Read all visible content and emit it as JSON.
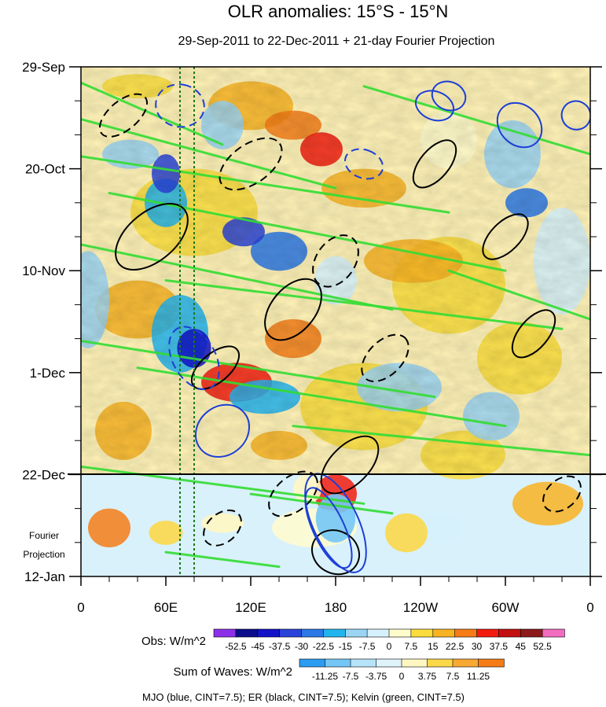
{
  "chart_data": {
    "type": "heatmap",
    "title": "OLR anomalies: 15°S - 15°N",
    "subtitle": "29-Sep-2011 to 22-Dec-2011 + 21-day Fourier Projection",
    "y_ticks": [
      "29-Sep",
      "20-Oct",
      "10-Nov",
      "1-Dec",
      "22-Dec",
      "12-Jan"
    ],
    "x_ticks": [
      "0",
      "60E",
      "120E",
      "180",
      "120W",
      "60W",
      "0"
    ],
    "x_range_deg_east": [
      0,
      360
    ],
    "y_range_days_after_29_Sep": [
      0,
      105
    ],
    "fourier_label_1": "Fourier",
    "fourier_label_2": "Projection",
    "obs_legend": {
      "label": "Obs: W/m^2",
      "levels": [
        "-52.5",
        "-45",
        "-37.5",
        "-30",
        "-22.5",
        "-15",
        "-7.5",
        "0",
        "7.5",
        "15",
        "22.5",
        "30",
        "37.5",
        "45",
        "52.5"
      ],
      "colors": [
        "#8c2fe8",
        "#0b0b8c",
        "#1212c8",
        "#2a43d9",
        "#2b78e6",
        "#22b4ee",
        "#9bd5f5",
        "#d6f1fb",
        "#fffccc",
        "#fadd3c",
        "#f8b322",
        "#f57c16",
        "#f21c0e",
        "#c21010",
        "#8c1a1a",
        "#f26cc0"
      ]
    },
    "waves_legend": {
      "label": "Sum of Waves: W/m^2",
      "levels": [
        "-11.25",
        "-7.5",
        "-3.75",
        "0",
        "3.75",
        "7.5",
        "11.25"
      ],
      "colors": [
        "#2b9cf2",
        "#74c6f6",
        "#b7e3f9",
        "#dff3fb",
        "#fff7c2",
        "#fbd84a",
        "#f8a934",
        "#f57c16"
      ]
    },
    "contour_note": "MJO (blue, CINT=7.5); ER (black, CINT=7.5); Kelvin (green, CINT=7.5)",
    "series": [
      {
        "name": "MJO",
        "color": "#1d3fd6",
        "cint": 7.5
      },
      {
        "name": "ER",
        "color": "#000000",
        "cint": 7.5
      },
      {
        "name": "Kelvin",
        "color": "#33dd33",
        "cint": 7.5
      }
    ],
    "reference_lines_deg_east": [
      70,
      80
    ]
  }
}
